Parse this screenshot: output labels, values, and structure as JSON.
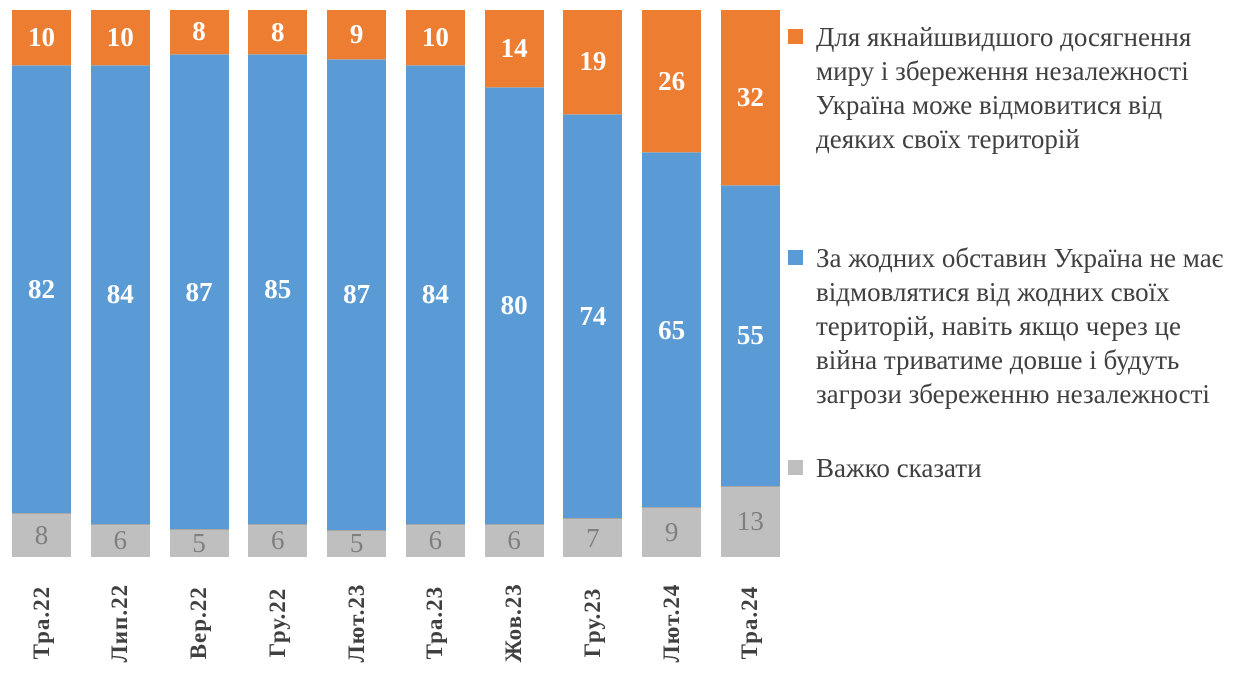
{
  "chart_data": {
    "type": "bar",
    "stacked": true,
    "normalized_100": true,
    "orientation": "vertical",
    "grid": false,
    "legend_position": "right",
    "ylim": [
      0,
      100
    ],
    "categories": [
      "Тра.22",
      "Лип.22",
      "Вер.22",
      "Гру.22",
      "Лют.23",
      "Тра.23",
      "Жов.23",
      "Гру.23",
      "Лют.24",
      "Тра.24"
    ],
    "series": [
      {
        "name": "Для якнайшвидшого досягнення миру і збереження незалежності Україна може відмовитися від деяких своїх територій",
        "color": "#ED7D31",
        "label_color": "#FFFFFF",
        "values": [
          10,
          10,
          8,
          8,
          9,
          10,
          14,
          19,
          26,
          32
        ]
      },
      {
        "name": "За жодних обставин Україна не має відмовлятися від жодних своїх територій, навіть якщо через це війна триватиме довше і будуть загрози збереженню незалежності",
        "color": "#5B9BD5",
        "label_color": "#FFFFFF",
        "values": [
          82,
          84,
          87,
          85,
          87,
          84,
          80,
          74,
          65,
          55
        ]
      },
      {
        "name": "Важко сказати",
        "color": "#BFBFBF",
        "label_color": "#7F7F7F",
        "values": [
          8,
          6,
          5,
          6,
          5,
          6,
          6,
          7,
          9,
          13
        ]
      }
    ],
    "axis_label_color": "#404040",
    "legend_text_color": "#404040",
    "background_color": "#FFFFFF"
  }
}
